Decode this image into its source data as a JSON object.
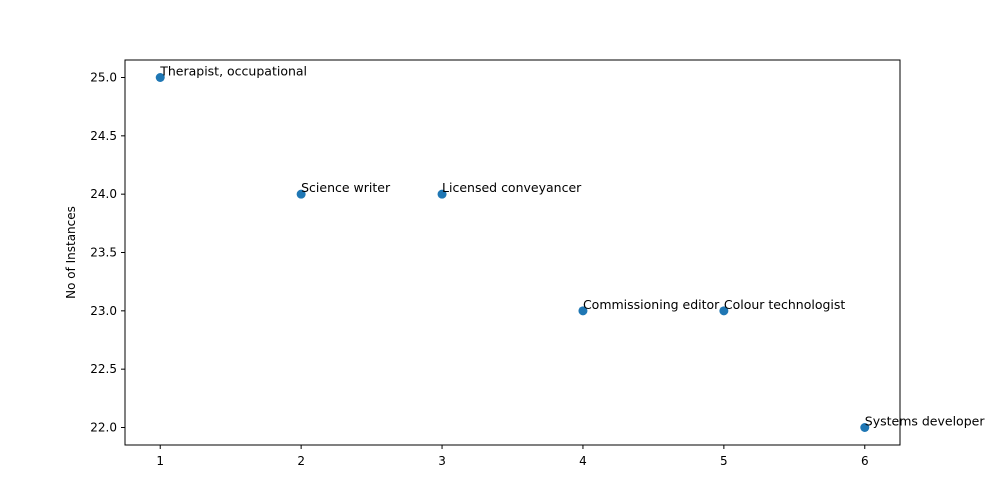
{
  "chart_data": {
    "type": "scatter",
    "title": "",
    "xlabel": "",
    "ylabel": "No of Instances",
    "xlim": [
      0.75,
      6.25
    ],
    "ylim": [
      21.85,
      25.15
    ],
    "x_ticks": [
      "1",
      "2",
      "3",
      "4",
      "5",
      "6"
    ],
    "x_tick_values": [
      1,
      2,
      3,
      4,
      5,
      6
    ],
    "y_ticks": [
      "22.0",
      "22.5",
      "23.0",
      "23.5",
      "24.0",
      "24.5",
      "25.0"
    ],
    "y_tick_values": [
      22.0,
      22.5,
      23.0,
      23.5,
      24.0,
      24.5,
      25.0
    ],
    "grid": false,
    "points": [
      {
        "x": 1,
        "y": 25,
        "label": "Therapist, occupational"
      },
      {
        "x": 2,
        "y": 24,
        "label": "Science writer"
      },
      {
        "x": 3,
        "y": 24,
        "label": "Licensed conveyancer"
      },
      {
        "x": 4,
        "y": 23,
        "label": "Commissioning editor"
      },
      {
        "x": 5,
        "y": 23,
        "label": "Colour technologist"
      },
      {
        "x": 6,
        "y": 22,
        "label": "Systems developer"
      }
    ],
    "marker_color": "#1f77b4"
  }
}
